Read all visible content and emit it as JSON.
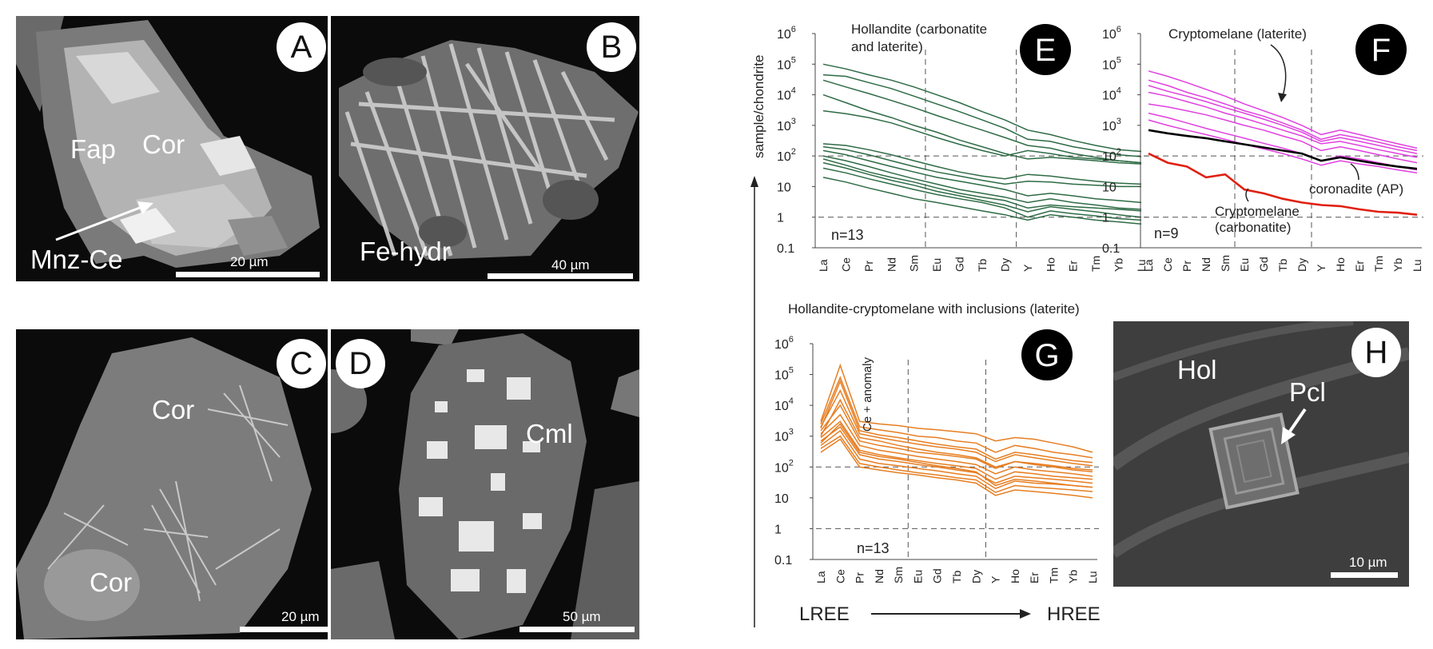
{
  "panels": {
    "A": {
      "letter": "A",
      "labels": {
        "fap": "Fap",
        "cor": "Cor",
        "mnz": "Mnz-Ce"
      },
      "scale": "20 µm"
    },
    "B": {
      "letter": "B",
      "labels": {
        "fe": "Fe-hydr"
      },
      "scale": "40 µm"
    },
    "C": {
      "letter": "C",
      "labels": {
        "cor1": "Cor",
        "cor2": "Cor"
      },
      "scale": "20 µm"
    },
    "D": {
      "letter": "D",
      "labels": {
        "cml": "Cml"
      },
      "scale": "50 µm"
    },
    "H": {
      "letter": "H",
      "labels": {
        "hol": "Hol",
        "pcl": "Pcl"
      },
      "scale": "10 µm"
    }
  },
  "y_axis_label": "sample/chondrite",
  "y_ticks": [
    "10^6",
    "10^5",
    "10^4",
    "10^3",
    "10^2",
    "10",
    "1",
    "0.1"
  ],
  "ree_axis": {
    "lree": "LREE",
    "hree": "HREE"
  },
  "g_heading": "Hollandite-cryptomelane with inclusions (laterite)",
  "chart_data": [
    {
      "id": "E",
      "type": "line",
      "letter": "E",
      "title": "Hollandite (carbonatite and laterite)",
      "title_lines": [
        "Hollandite (carbonatite",
        "and laterite)"
      ],
      "annotation": "n=13",
      "y_scale": "log",
      "ylim": [
        0.1,
        1000000
      ],
      "categories": [
        "La",
        "Ce",
        "Pr",
        "Nd",
        "Sm",
        "Eu",
        "Gd",
        "Tb",
        "Dy",
        "Y",
        "Ho",
        "Er",
        "Tm",
        "Yb",
        "Lu"
      ],
      "vlines_after": [
        "Sm",
        "Dy"
      ],
      "hlines": [
        1,
        100
      ],
      "line_color": "#2e6b45",
      "series": [
        {
          "values": [
            100000,
            70000,
            45000,
            30000,
            18000,
            10000,
            5500,
            2800,
            1500,
            700,
            500,
            320,
            220,
            160,
            140
          ]
        },
        {
          "values": [
            45000,
            40000,
            25000,
            16000,
            9000,
            5000,
            2800,
            1500,
            800,
            350,
            300,
            200,
            150,
            110,
            95
          ]
        },
        {
          "values": [
            30000,
            18000,
            11000,
            6500,
            3800,
            2100,
            1200,
            700,
            400,
            220,
            180,
            120,
            90,
            70,
            60
          ]
        },
        {
          "values": [
            10000,
            5500,
            3000,
            1800,
            1000,
            600,
            330,
            200,
            120,
            80,
            90,
            80,
            70,
            60,
            55
          ]
        },
        {
          "values": [
            3000,
            2400,
            1800,
            1200,
            700,
            400,
            240,
            150,
            100,
            150,
            120,
            90,
            80,
            70,
            60
          ]
        },
        {
          "values": [
            200,
            160,
            110,
            70,
            45,
            30,
            22,
            16,
            12,
            15,
            14,
            12,
            11,
            10,
            10
          ]
        },
        {
          "values": [
            150,
            110,
            70,
            45,
            30,
            20,
            15,
            11,
            8,
            5,
            6,
            5,
            4,
            3.5,
            3
          ]
        },
        {
          "values": [
            100,
            70,
            45,
            28,
            18,
            12,
            8,
            6,
            4.5,
            3,
            4,
            3,
            2.5,
            2,
            1.8
          ]
        },
        {
          "values": [
            60,
            40,
            25,
            16,
            11,
            7,
            5,
            3.5,
            2.5,
            1.5,
            2.2,
            1.8,
            1.5,
            1.2,
            1
          ]
        },
        {
          "values": [
            40,
            28,
            18,
            12,
            8,
            5.5,
            4,
            3,
            2,
            1,
            1.6,
            1.3,
            1.1,
            0.9,
            0.8
          ]
        },
        {
          "values": [
            20,
            14,
            9,
            6,
            4,
            3,
            2.2,
            1.6,
            1.2,
            0.8,
            1.2,
            1,
            0.8,
            0.7,
            0.6
          ]
        },
        {
          "values": [
            80,
            50,
            30,
            20,
            14,
            9,
            6,
            4.5,
            3.5,
            2,
            2.5,
            2.2,
            2,
            1.8,
            1.6
          ]
        },
        {
          "values": [
            250,
            220,
            160,
            110,
            70,
            45,
            30,
            22,
            18,
            25,
            22,
            18,
            15,
            13,
            12
          ]
        }
      ]
    },
    {
      "id": "F",
      "type": "line",
      "letter": "F",
      "annotations": {
        "cryptomelane_laterite": "Cryptomelane (laterite)",
        "coronadite": "coronadite (AP)",
        "cryptomelane_carbonatite_lines": [
          "Cryptomelane",
          "(carbonatite)"
        ],
        "n": "n=9"
      },
      "y_scale": "log",
      "ylim": [
        0.1,
        1000000
      ],
      "categories": [
        "La",
        "Ce",
        "Pr",
        "Nd",
        "Sm",
        "Eu",
        "Gd",
        "Tb",
        "Dy",
        "Y",
        "Ho",
        "Er",
        "Tm",
        "Yb",
        "Lu"
      ],
      "vlines_after": [
        "Sm",
        "Dy"
      ],
      "hlines": [
        1,
        100
      ],
      "series": [
        {
          "color": "#e040e0",
          "values": [
            60000,
            40000,
            25000,
            15000,
            9000,
            5000,
            3000,
            1800,
            1000,
            500,
            700,
            500,
            350,
            250,
            180
          ]
        },
        {
          "color": "#e040e0",
          "values": [
            30000,
            20000,
            12000,
            8000,
            5000,
            3000,
            2000,
            1200,
            700,
            350,
            500,
            380,
            280,
            200,
            150
          ]
        },
        {
          "color": "#e040e0",
          "values": [
            20000,
            13000,
            9000,
            6000,
            3800,
            2500,
            1600,
            1000,
            600,
            300,
            400,
            300,
            220,
            160,
            120
          ]
        },
        {
          "color": "#e040e0",
          "values": [
            12000,
            9000,
            6000,
            4000,
            2500,
            1700,
            1100,
            700,
            450,
            250,
            300,
            220,
            160,
            120,
            90
          ]
        },
        {
          "color": "#e040e0",
          "values": [
            5000,
            4000,
            3000,
            2200,
            1500,
            1000,
            700,
            450,
            300,
            150,
            200,
            150,
            110,
            80,
            60
          ]
        },
        {
          "color": "#e040e0",
          "values": [
            2500,
            1800,
            1200,
            800,
            550,
            380,
            260,
            180,
            120,
            70,
            100,
            80,
            60,
            45,
            35
          ]
        },
        {
          "color": "#e040e0",
          "values": [
            1500,
            1000,
            700,
            500,
            350,
            240,
            170,
            120,
            80,
            50,
            70,
            55,
            45,
            35,
            28
          ]
        },
        {
          "color": "#000000",
          "values": [
            700,
            550,
            450,
            380,
            300,
            240,
            190,
            150,
            120,
            70,
            90,
            70,
            55,
            45,
            38
          ]
        },
        {
          "color": "#e02010",
          "values": [
            120,
            60,
            45,
            20,
            25,
            8,
            6,
            4,
            3,
            2.5,
            2.3,
            1.8,
            1.5,
            1.4,
            1.2
          ]
        }
      ]
    },
    {
      "id": "G",
      "type": "line",
      "letter": "G",
      "annotations": {
        "anomaly": "Ce + anomaly",
        "n": "n=13"
      },
      "y_scale": "log",
      "ylim": [
        0.1,
        1000000
      ],
      "categories": [
        "La",
        "Ce",
        "Pr",
        "Nd",
        "Sm",
        "Eu",
        "Gd",
        "Tb",
        "Dy",
        "Y",
        "Ho",
        "Er",
        "Tm",
        "Yb",
        "Lu"
      ],
      "vlines_after": [
        "Sm",
        "Dy"
      ],
      "hlines": [
        1,
        100
      ],
      "line_color": "#e67e22",
      "series": [
        {
          "values": [
            3000,
            200000,
            3000,
            2500,
            2200,
            1800,
            1600,
            1400,
            1200,
            700,
            900,
            800,
            600,
            450,
            300
          ]
        },
        {
          "values": [
            2500,
            80000,
            2000,
            1600,
            1300,
            1000,
            900,
            700,
            600,
            300,
            500,
            400,
            300,
            250,
            200
          ]
        },
        {
          "values": [
            2000,
            30000,
            1200,
            900,
            700,
            550,
            450,
            380,
            300,
            150,
            250,
            200,
            160,
            130,
            110
          ]
        },
        {
          "values": [
            1500,
            10000,
            700,
            500,
            400,
            300,
            260,
            220,
            180,
            90,
            150,
            120,
            100,
            80,
            70
          ]
        },
        {
          "values": [
            1200,
            5000,
            500,
            350,
            280,
            220,
            180,
            150,
            120,
            60,
            100,
            80,
            70,
            60,
            50
          ]
        },
        {
          "values": [
            900,
            3000,
            350,
            250,
            200,
            160,
            130,
            110,
            90,
            40,
            70,
            60,
            50,
            45,
            40
          ]
        },
        {
          "values": [
            700,
            2000,
            250,
            180,
            150,
            120,
            100,
            80,
            65,
            30,
            50,
            45,
            40,
            35,
            30
          ]
        },
        {
          "values": [
            500,
            1500,
            180,
            130,
            110,
            90,
            75,
            60,
            50,
            20,
            35,
            30,
            28,
            25,
            22
          ]
        },
        {
          "values": [
            400,
            1000,
            130,
            100,
            80,
            65,
            55,
            45,
            38,
            15,
            25,
            22,
            20,
            18,
            16
          ]
        },
        {
          "values": [
            300,
            800,
            100,
            80,
            65,
            55,
            45,
            38,
            30,
            12,
            18,
            16,
            14,
            12,
            10
          ]
        },
        {
          "values": [
            600,
            2500,
            300,
            220,
            180,
            140,
            110,
            90,
            70,
            25,
            40,
            35,
            30,
            25,
            22
          ]
        },
        {
          "values": [
            1000,
            15000,
            900,
            700,
            500,
            380,
            300,
            250,
            200,
            100,
            150,
            130,
            110,
            90,
            80
          ]
        },
        {
          "values": [
            1800,
            60000,
            1500,
            1100,
            900,
            700,
            550,
            450,
            380,
            180,
            300,
            250,
            200,
            160,
            140
          ]
        }
      ]
    }
  ]
}
